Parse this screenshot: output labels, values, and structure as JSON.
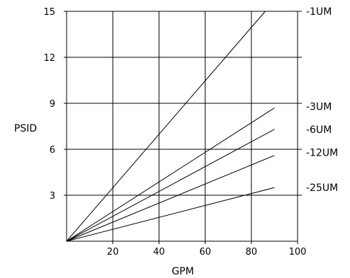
{
  "chart_data": {
    "type": "line",
    "title": "",
    "xlabel": "GPM",
    "ylabel": "PSID",
    "xlim": [
      0,
      100
    ],
    "ylim": [
      0,
      15
    ],
    "x_ticks": [
      20,
      40,
      60,
      80,
      100
    ],
    "y_ticks": [
      3,
      6,
      9,
      12,
      15
    ],
    "grid": true,
    "legend": "right-side labels at line ends",
    "series": [
      {
        "name": "-1UM",
        "x": [
          0,
          86
        ],
        "y": [
          0,
          15.0
        ]
      },
      {
        "name": "-3UM",
        "x": [
          0,
          90
        ],
        "y": [
          0,
          8.7
        ]
      },
      {
        "name": "-6UM",
        "x": [
          0,
          90
        ],
        "y": [
          0,
          7.3
        ]
      },
      {
        "name": "-12UM",
        "x": [
          0,
          90
        ],
        "y": [
          0,
          5.6
        ]
      },
      {
        "name": "-25UM",
        "x": [
          0,
          90
        ],
        "y": [
          0,
          3.5
        ]
      }
    ],
    "series_label_y": [
      15.0,
      8.8,
      7.3,
      5.8,
      3.5
    ]
  },
  "colors": {
    "line": "#000000",
    "grid": "#000000",
    "background": "#ffffff"
  }
}
